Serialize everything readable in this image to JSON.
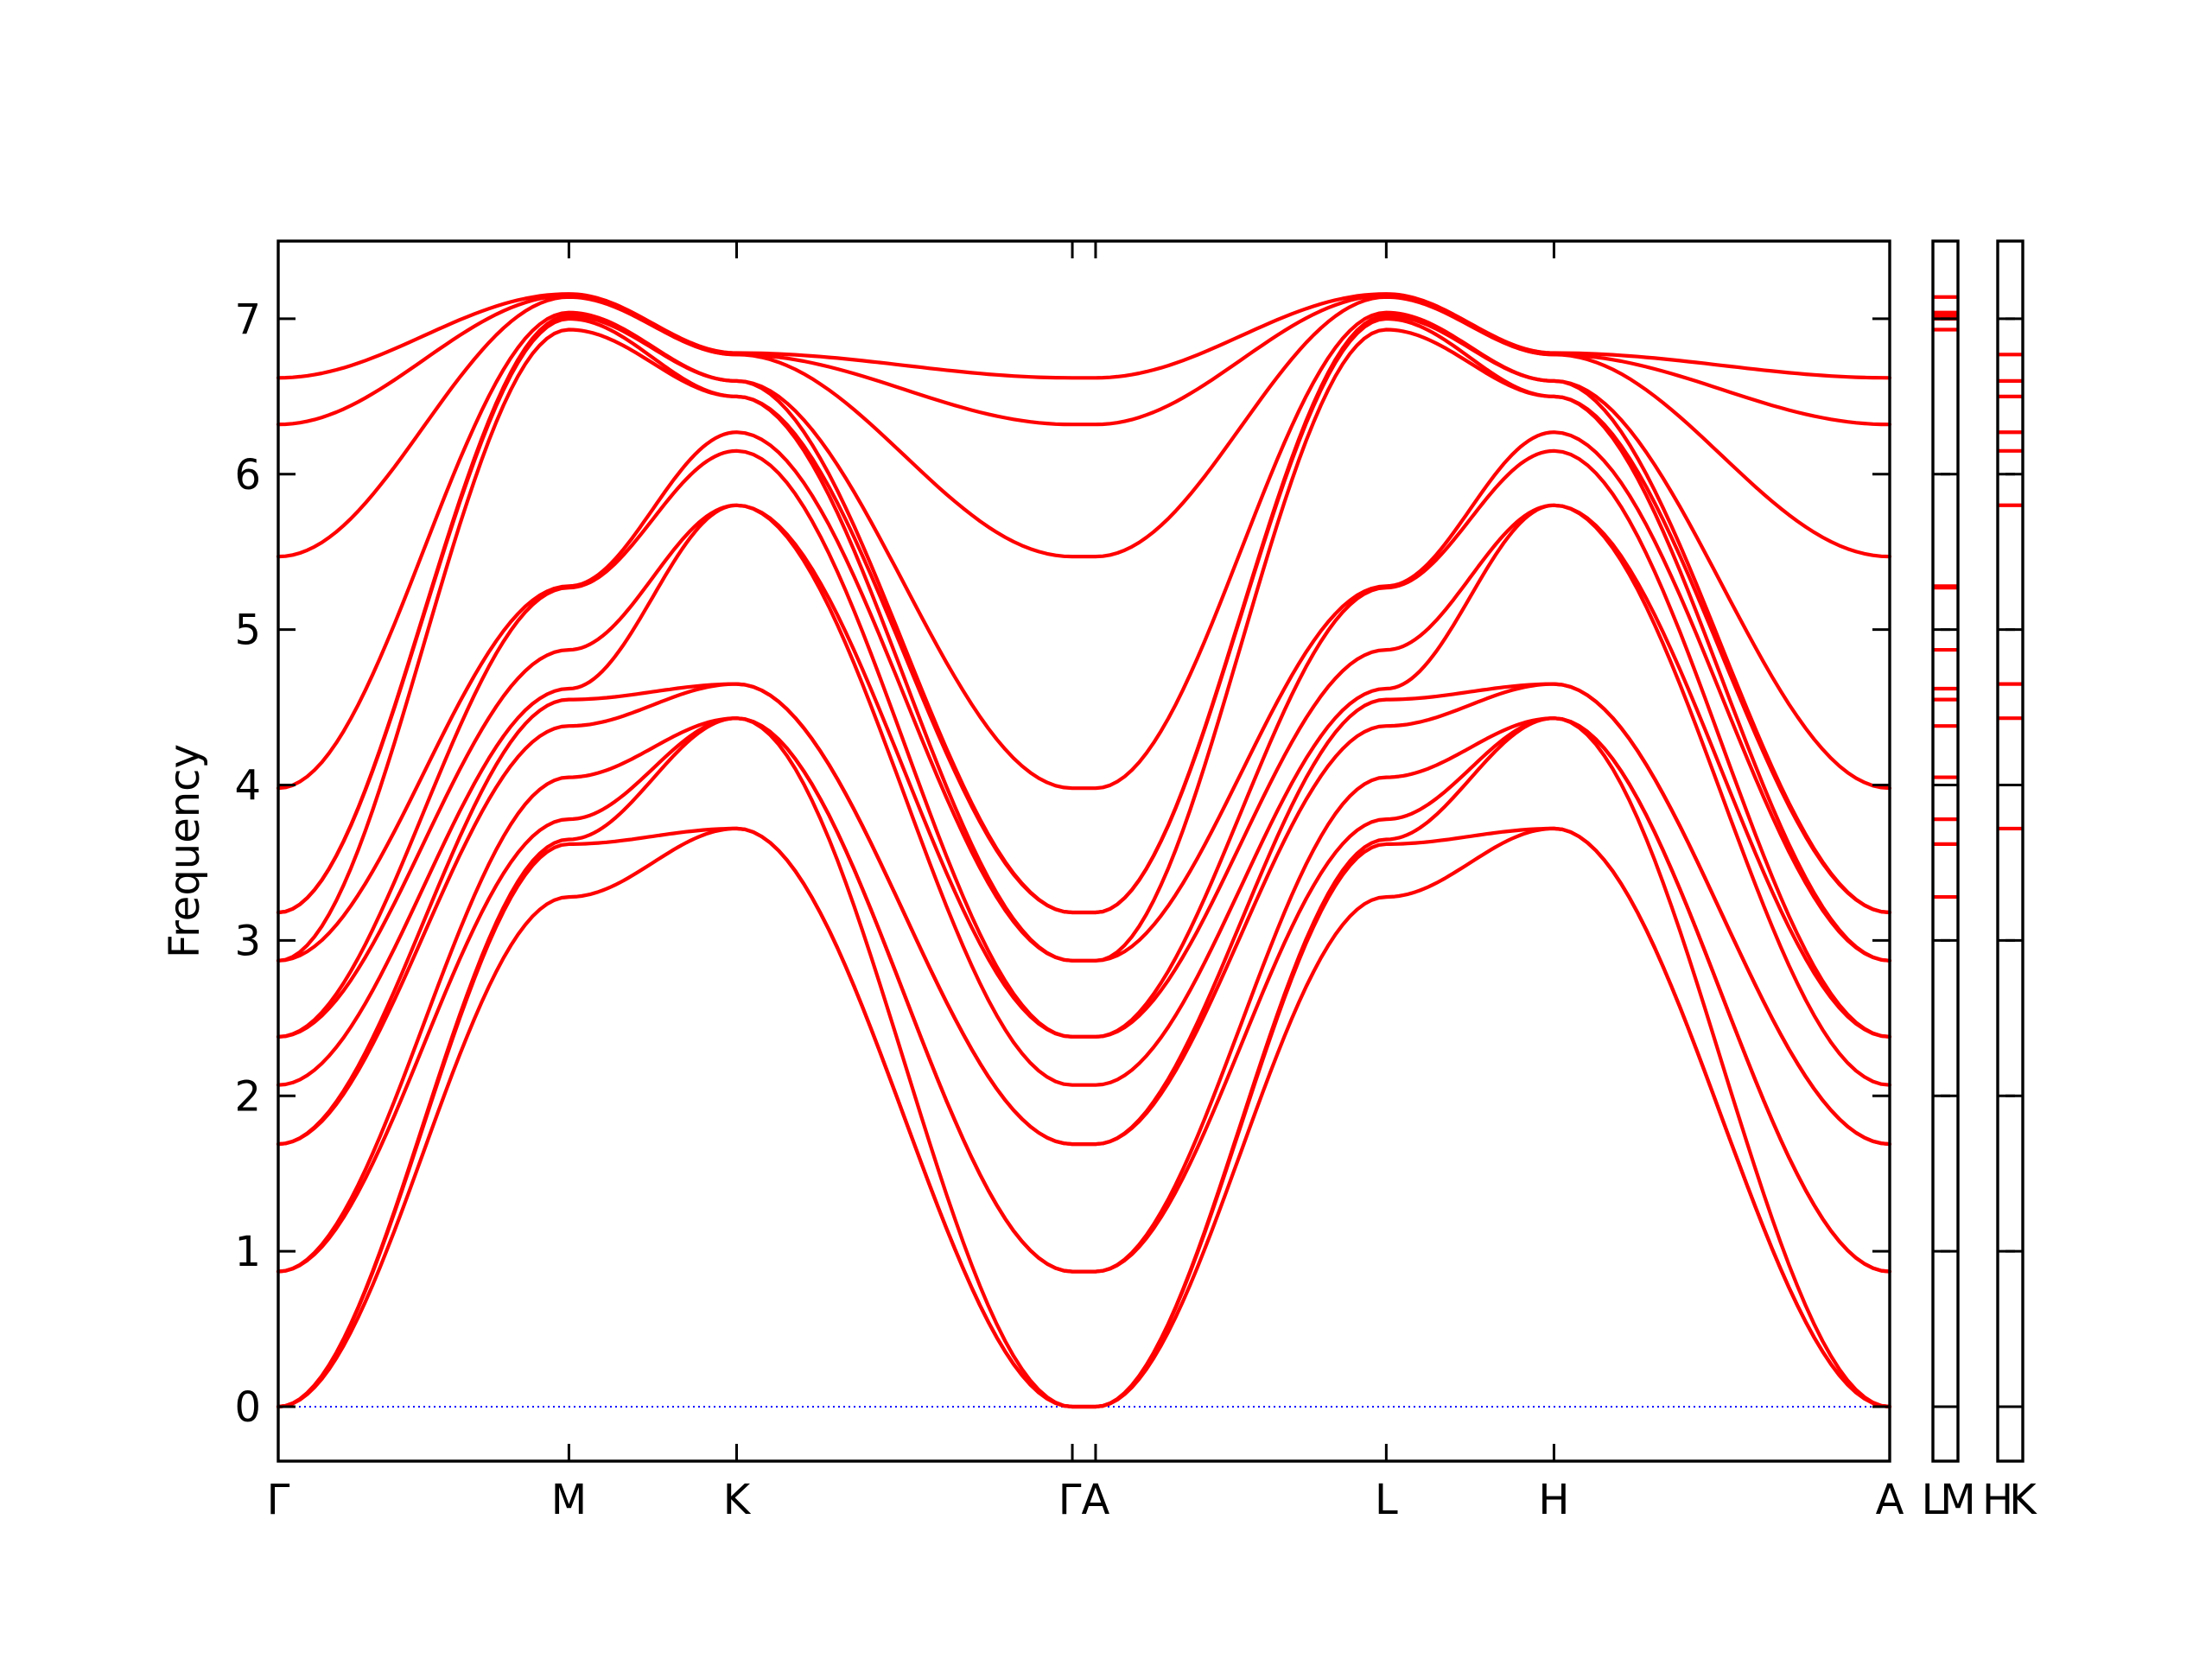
{
  "chart_data": {
    "type": "line",
    "title": "",
    "xlabel": "",
    "ylabel": "Frequency",
    "ylim": [
      -0.35,
      7.5
    ],
    "yticks": [
      0,
      1,
      2,
      3,
      4,
      5,
      6,
      7
    ],
    "band_color": "#ff0000",
    "zero_line_color": "#0000ff",
    "grid": false,
    "legend": "none",
    "path_labels": [
      "Γ",
      "M",
      "K",
      "ΓA",
      "L",
      "H",
      "A"
    ],
    "points": [
      "Γ",
      "M",
      "K",
      "Γ",
      "A",
      "L",
      "H",
      "A"
    ],
    "segment_lengths": [
      1.0,
      0.577,
      1.155,
      0.08,
      1.0,
      0.577,
      1.155
    ],
    "bands": [
      [
        0.0,
        3.28,
        3.72,
        0.0,
        0.0,
        3.28,
        3.72,
        0.0
      ],
      [
        0.0,
        3.62,
        3.72,
        0.0,
        0.0,
        3.62,
        3.72,
        0.0
      ],
      [
        0.0,
        3.65,
        4.43,
        0.0,
        0.0,
        3.65,
        4.43,
        0.0
      ],
      [
        0.87,
        3.78,
        4.43,
        0.87,
        0.87,
        3.78,
        4.43,
        0.87
      ],
      [
        0.87,
        4.05,
        4.43,
        0.87,
        0.87,
        4.05,
        4.43,
        0.87
      ],
      [
        1.69,
        4.38,
        4.65,
        1.69,
        1.69,
        4.38,
        4.65,
        1.69
      ],
      [
        1.69,
        4.55,
        4.65,
        1.69,
        1.69,
        4.55,
        4.65,
        1.69
      ],
      [
        2.07,
        4.62,
        5.8,
        2.07,
        2.07,
        4.62,
        5.8,
        2.07
      ],
      [
        2.38,
        4.87,
        5.8,
        2.38,
        2.38,
        4.87,
        5.8,
        2.38
      ],
      [
        2.38,
        5.27,
        6.15,
        2.38,
        2.38,
        5.27,
        6.15,
        2.38
      ],
      [
        2.87,
        5.28,
        6.27,
        2.87,
        2.87,
        5.28,
        6.27,
        2.87
      ],
      [
        2.87,
        6.93,
        6.5,
        2.87,
        2.87,
        6.93,
        6.5,
        2.87
      ],
      [
        3.18,
        7.0,
        6.5,
        3.18,
        3.18,
        7.0,
        6.5,
        3.18
      ],
      [
        3.18,
        7.02,
        6.6,
        3.18,
        3.18,
        7.02,
        6.6,
        3.18
      ],
      [
        3.98,
        7.04,
        6.6,
        3.98,
        3.98,
        7.04,
        6.6,
        3.98
      ],
      [
        5.47,
        7.14,
        6.77,
        5.47,
        5.47,
        7.14,
        6.77,
        5.47
      ],
      [
        6.32,
        7.15,
        6.77,
        6.32,
        6.32,
        7.15,
        6.77,
        6.32
      ],
      [
        6.62,
        7.16,
        6.78,
        6.62,
        6.62,
        7.16,
        6.78,
        6.62
      ]
    ],
    "side_panels": [
      {
        "labels": [
          "L",
          "M"
        ],
        "values": [
          3.28,
          3.62,
          3.78,
          4.05,
          4.38,
          4.55,
          4.62,
          4.87,
          5.27,
          5.28,
          6.93,
          7.0,
          7.02,
          7.04,
          7.14
        ]
      },
      {
        "labels": [
          "H",
          "K"
        ],
        "values": [
          3.72,
          4.43,
          4.65,
          5.8,
          6.15,
          6.27,
          6.5,
          6.6,
          6.77
        ]
      }
    ]
  }
}
